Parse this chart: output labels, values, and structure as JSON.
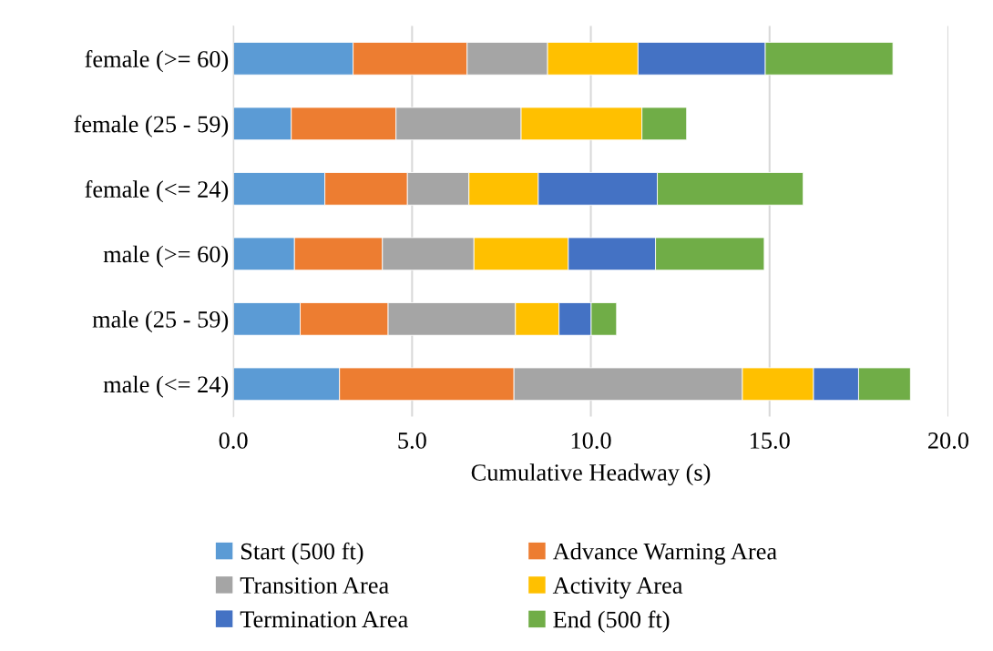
{
  "chart_data": {
    "type": "bar",
    "orientation": "horizontal",
    "stacked": true,
    "categories": [
      "female (>= 60)",
      "female (25 - 59)",
      "female (<= 24)",
      "male (>= 60)",
      "male (25 - 59)",
      "male (<= 24)"
    ],
    "series": [
      {
        "name": "Start (500 ft)",
        "color": "#5b9bd5",
        "values": [
          3.35,
          1.62,
          2.56,
          1.71,
          1.87,
          2.97
        ]
      },
      {
        "name": "Advance Warning Area",
        "color": "#ed7d31",
        "values": [
          3.19,
          2.93,
          2.31,
          2.46,
          2.46,
          4.88
        ]
      },
      {
        "name": "Transition Area",
        "color": "#a5a5a5",
        "values": [
          2.25,
          3.5,
          1.72,
          2.56,
          3.56,
          6.39
        ]
      },
      {
        "name": "Activity Area",
        "color": "#ffc000",
        "values": [
          2.53,
          3.38,
          1.94,
          2.64,
          1.22,
          1.99
        ]
      },
      {
        "name": "Termination Area",
        "color": "#4472c4",
        "values": [
          3.56,
          null,
          3.33,
          2.44,
          0.9,
          1.26
        ]
      },
      {
        "name": "End (500 ft)",
        "color": "#70ad47",
        "values": [
          3.57,
          1.25,
          4.08,
          3.04,
          0.71,
          1.45
        ]
      }
    ],
    "xlabel": "Cumulative Headway (s)",
    "xlim": [
      0,
      20
    ],
    "xticks": [
      {
        "value": 0,
        "label": "0.0"
      },
      {
        "value": 5,
        "label": "5.0"
      },
      {
        "value": 10,
        "label": "10.0"
      },
      {
        "value": 15,
        "label": "15.0"
      },
      {
        "value": 20,
        "label": "20.0"
      }
    ],
    "grid": "x",
    "legend": "bottom"
  }
}
